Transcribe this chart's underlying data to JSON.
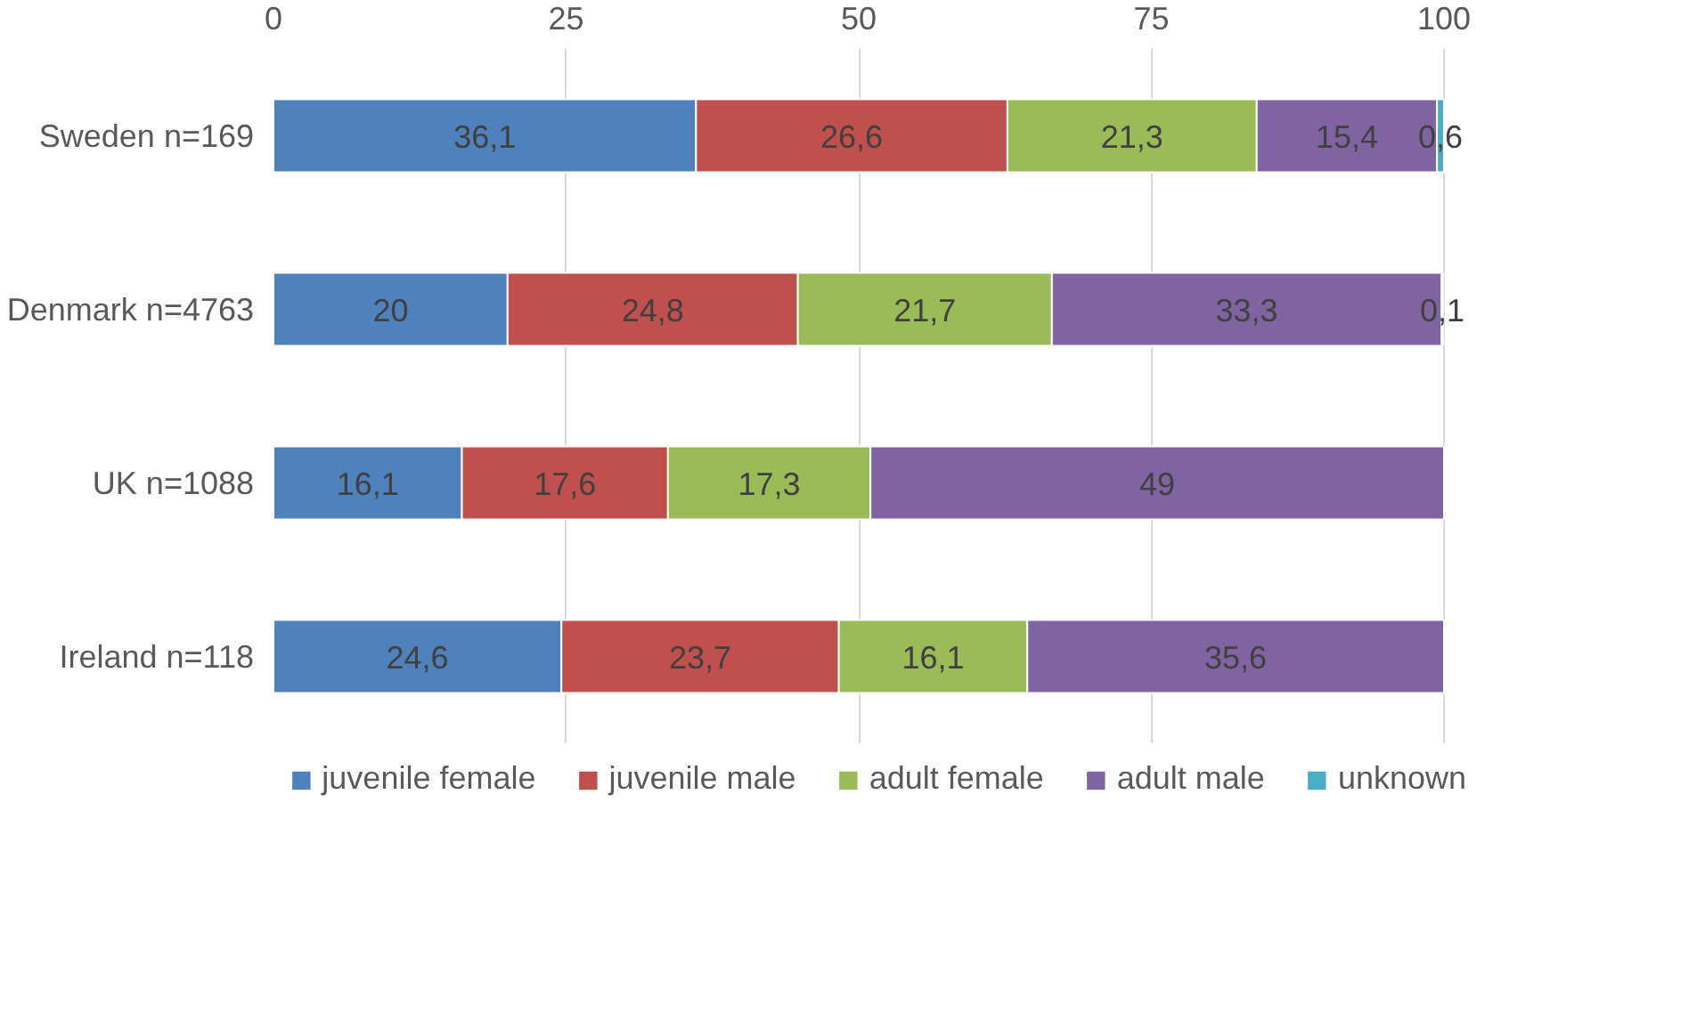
{
  "chart_data": {
    "type": "bar",
    "orientation": "horizontal",
    "stacked": true,
    "categories": [
      "Sweden n=169",
      "Denmark n=4763",
      "UK n=1088",
      "Ireland n=118"
    ],
    "series": [
      {
        "name": "juvenile female",
        "color": "#4f81bd",
        "values": [
          36.1,
          20,
          16.1,
          24.6
        ],
        "value_labels": [
          "36,1",
          "20",
          "16,1",
          "24,6"
        ]
      },
      {
        "name": "juvenile male",
        "color": "#c0504d",
        "values": [
          26.6,
          24.8,
          17.6,
          23.7
        ],
        "value_labels": [
          "26,6",
          "24,8",
          "17,6",
          "23,7"
        ]
      },
      {
        "name": "adult female",
        "color": "#9bbb59",
        "values": [
          21.3,
          21.7,
          17.3,
          16.1
        ],
        "value_labels": [
          "21,3",
          "21,7",
          "17,3",
          "16,1"
        ]
      },
      {
        "name": "adult male",
        "color": "#8064a2",
        "values": [
          15.4,
          33.3,
          49,
          35.6
        ],
        "value_labels": [
          "15,4",
          "33,3",
          "49",
          "35,6"
        ]
      },
      {
        "name": "unknown",
        "color": "#4bacc6",
        "values": [
          0.6,
          0.1,
          null,
          null
        ],
        "value_labels": [
          "0,6",
          "0,1",
          null,
          null
        ]
      }
    ],
    "xlim": [
      0,
      100
    ],
    "xticks": [
      0,
      25,
      50,
      75,
      100
    ],
    "grid": "x",
    "legend": "bottom"
  }
}
